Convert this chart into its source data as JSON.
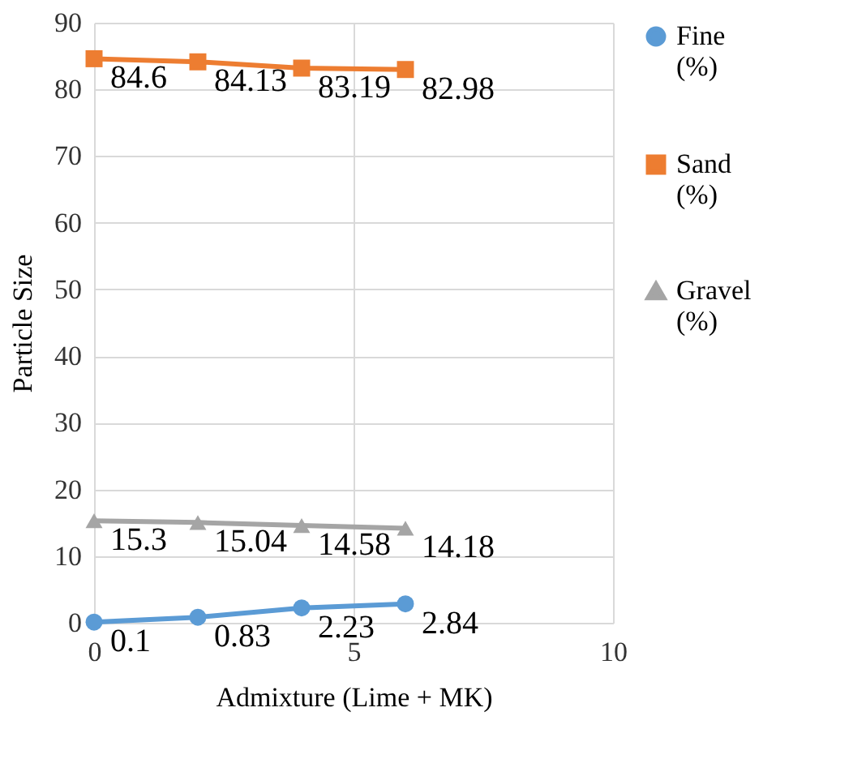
{
  "chart_data": {
    "type": "line",
    "xlabel": "Admixture (Lime + MK)",
    "ylabel": "Particle Size",
    "x": [
      0,
      2,
      4,
      6
    ],
    "xlim": [
      0,
      10
    ],
    "xticks": [
      0,
      5,
      10
    ],
    "ylim": [
      0,
      90
    ],
    "yticks": [
      0,
      10,
      20,
      30,
      40,
      50,
      60,
      70,
      80,
      90
    ],
    "grid": true,
    "legend": "right",
    "data_labels": true,
    "series": [
      {
        "name": "Fine (%)",
        "color": "#5b9bd5",
        "marker": "circle",
        "values": [
          0.1,
          0.83,
          2.23,
          2.84
        ]
      },
      {
        "name": "Sand (%)",
        "color": "#ed7d31",
        "marker": "square",
        "values": [
          84.6,
          84.13,
          83.19,
          82.98
        ]
      },
      {
        "name": "Gravel (%)",
        "color": "#a5a5a5",
        "marker": "triangle",
        "values": [
          15.3,
          15.04,
          14.58,
          14.18
        ]
      }
    ]
  }
}
